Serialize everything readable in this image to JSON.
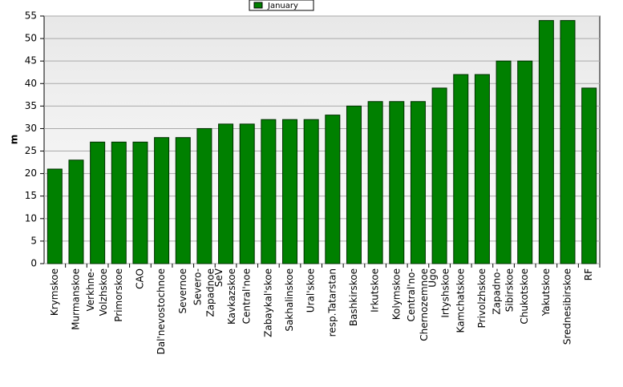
{
  "chart_data": {
    "type": "bar",
    "y_label": "m",
    "legend": "January",
    "color": "#008000",
    "categories": [
      [
        "Krymskoe"
      ],
      [
        "Murmanskoe"
      ],
      [
        "Verkhne-",
        "Volzhskoe"
      ],
      [
        "Primorskoe"
      ],
      [
        "CAO"
      ],
      [
        "Dal'nevostochnoe"
      ],
      [
        "Severnoe"
      ],
      [
        "Severo-",
        "Zapadnoe"
      ],
      [
        "SeV",
        "Kavkazskoe"
      ],
      [
        "Central'noe"
      ],
      [
        "Zabaykal'skoe"
      ],
      [
        "Sakhalinskoe"
      ],
      [
        "Ural'skoe"
      ],
      [
        "resp.Tatarstan"
      ],
      [
        "Bashkirskoe"
      ],
      [
        "Irkutskoe"
      ],
      [
        "Kolymskoe"
      ],
      [
        "Central'no-",
        "Chernozemnoe"
      ],
      [
        "Ugo",
        "Irtyshskoe"
      ],
      [
        "Kamchatskoe"
      ],
      [
        "Privolzhskoe"
      ],
      [
        "Zapadno-",
        "Sibirskoe"
      ],
      [
        "Chukotskoe"
      ],
      [
        "Yakutskoe"
      ],
      [
        "Srednesibirskoe"
      ],
      [
        "RF"
      ]
    ],
    "values": [
      21,
      23,
      27,
      27,
      27,
      28,
      28,
      30,
      31,
      31,
      32,
      32,
      32,
      33,
      35,
      36,
      36,
      36,
      39,
      42,
      42,
      45,
      45,
      54,
      54,
      39
    ],
    "ylim": [
      0,
      55
    ],
    "yticks": [
      0,
      5,
      10,
      15,
      20,
      25,
      30,
      35,
      40,
      45,
      50,
      55
    ],
    "grid": true
  }
}
